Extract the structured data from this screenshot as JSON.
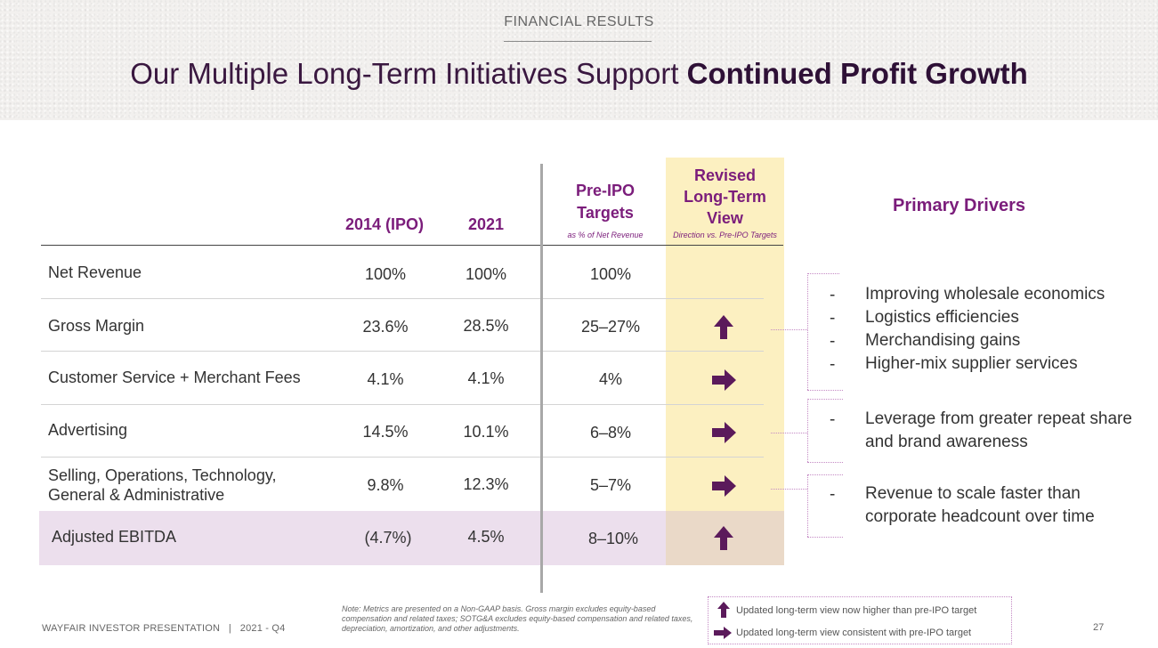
{
  "header": {
    "section_label": "FINANCIAL RESULTS",
    "title_regular": "Our Multiple Long-Term Initiatives Support ",
    "title_bold": "Continued Profit Growth"
  },
  "table": {
    "columns": {
      "ipo": "2014 (IPO)",
      "y2021": "2021",
      "preipo_l1": "Pre-IPO",
      "preipo_l2": "Targets",
      "preipo_sub": "as % of Net Revenue",
      "revised_l1": "Revised",
      "revised_l2": "Long-Term",
      "revised_l3": "View",
      "revised_sub": "Direction vs. Pre-IPO Targets"
    },
    "rows": [
      {
        "label": "Net Revenue",
        "ipo": "100%",
        "y2021": "100%",
        "preipo": "100%",
        "direction": ""
      },
      {
        "label": "Gross Margin",
        "ipo": "23.6%",
        "y2021": "28.5%",
        "preipo": "25–27%",
        "direction": "up"
      },
      {
        "label": "Customer Service + Merchant Fees",
        "ipo": "4.1%",
        "y2021": "4.1%",
        "preipo": "4%",
        "direction": "right"
      },
      {
        "label": "Advertising",
        "ipo": "14.5%",
        "y2021": "10.1%",
        "preipo": "6–8%",
        "direction": "right"
      },
      {
        "label_l1": "Selling, Operations, Technology,",
        "label_l2": "General & Administrative",
        "ipo": "9.8%",
        "y2021": "12.3%",
        "preipo": "5–7%",
        "direction": "right"
      },
      {
        "label": "Adjusted EBITDA",
        "ipo": "(4.7%)",
        "y2021": "4.5%",
        "preipo": "8–10%",
        "direction": "up"
      }
    ]
  },
  "drivers": {
    "title": "Primary Drivers",
    "dash": "-",
    "group1": [
      "Improving wholesale economics",
      "Logistics efficiencies",
      "Merchandising gains",
      "Higher-mix supplier services"
    ],
    "group2_l1": "Leverage from greater repeat share",
    "group2_l2": "and brand awareness",
    "group3_l1": "Revenue to scale faster than",
    "group3_l2": "corporate headcount over time"
  },
  "footer": {
    "left": "WAYFAIR INVESTOR PRESENTATION   |   2021 - Q4",
    "note": "Note: Metrics are presented on a Non-GAAP basis. Gross margin excludes equity-based compensation and related taxes; SOTG&A excludes equity-based compensation and related taxes, depreciation, amortization, and other adjustments.",
    "legend_up": "Updated long-term view now higher than pre-IPO target",
    "legend_right": "Updated long-term view consistent with pre-IPO target",
    "page_number": "27"
  },
  "colors": {
    "accent_purple": "#7b1d7b",
    "arrow_purple": "#5b1a5b",
    "revised_column": "#fcf0c1",
    "ebitda_row": "#ecdfed"
  },
  "icons": {
    "up": "arrow-up-icon",
    "right": "arrow-right-icon"
  }
}
